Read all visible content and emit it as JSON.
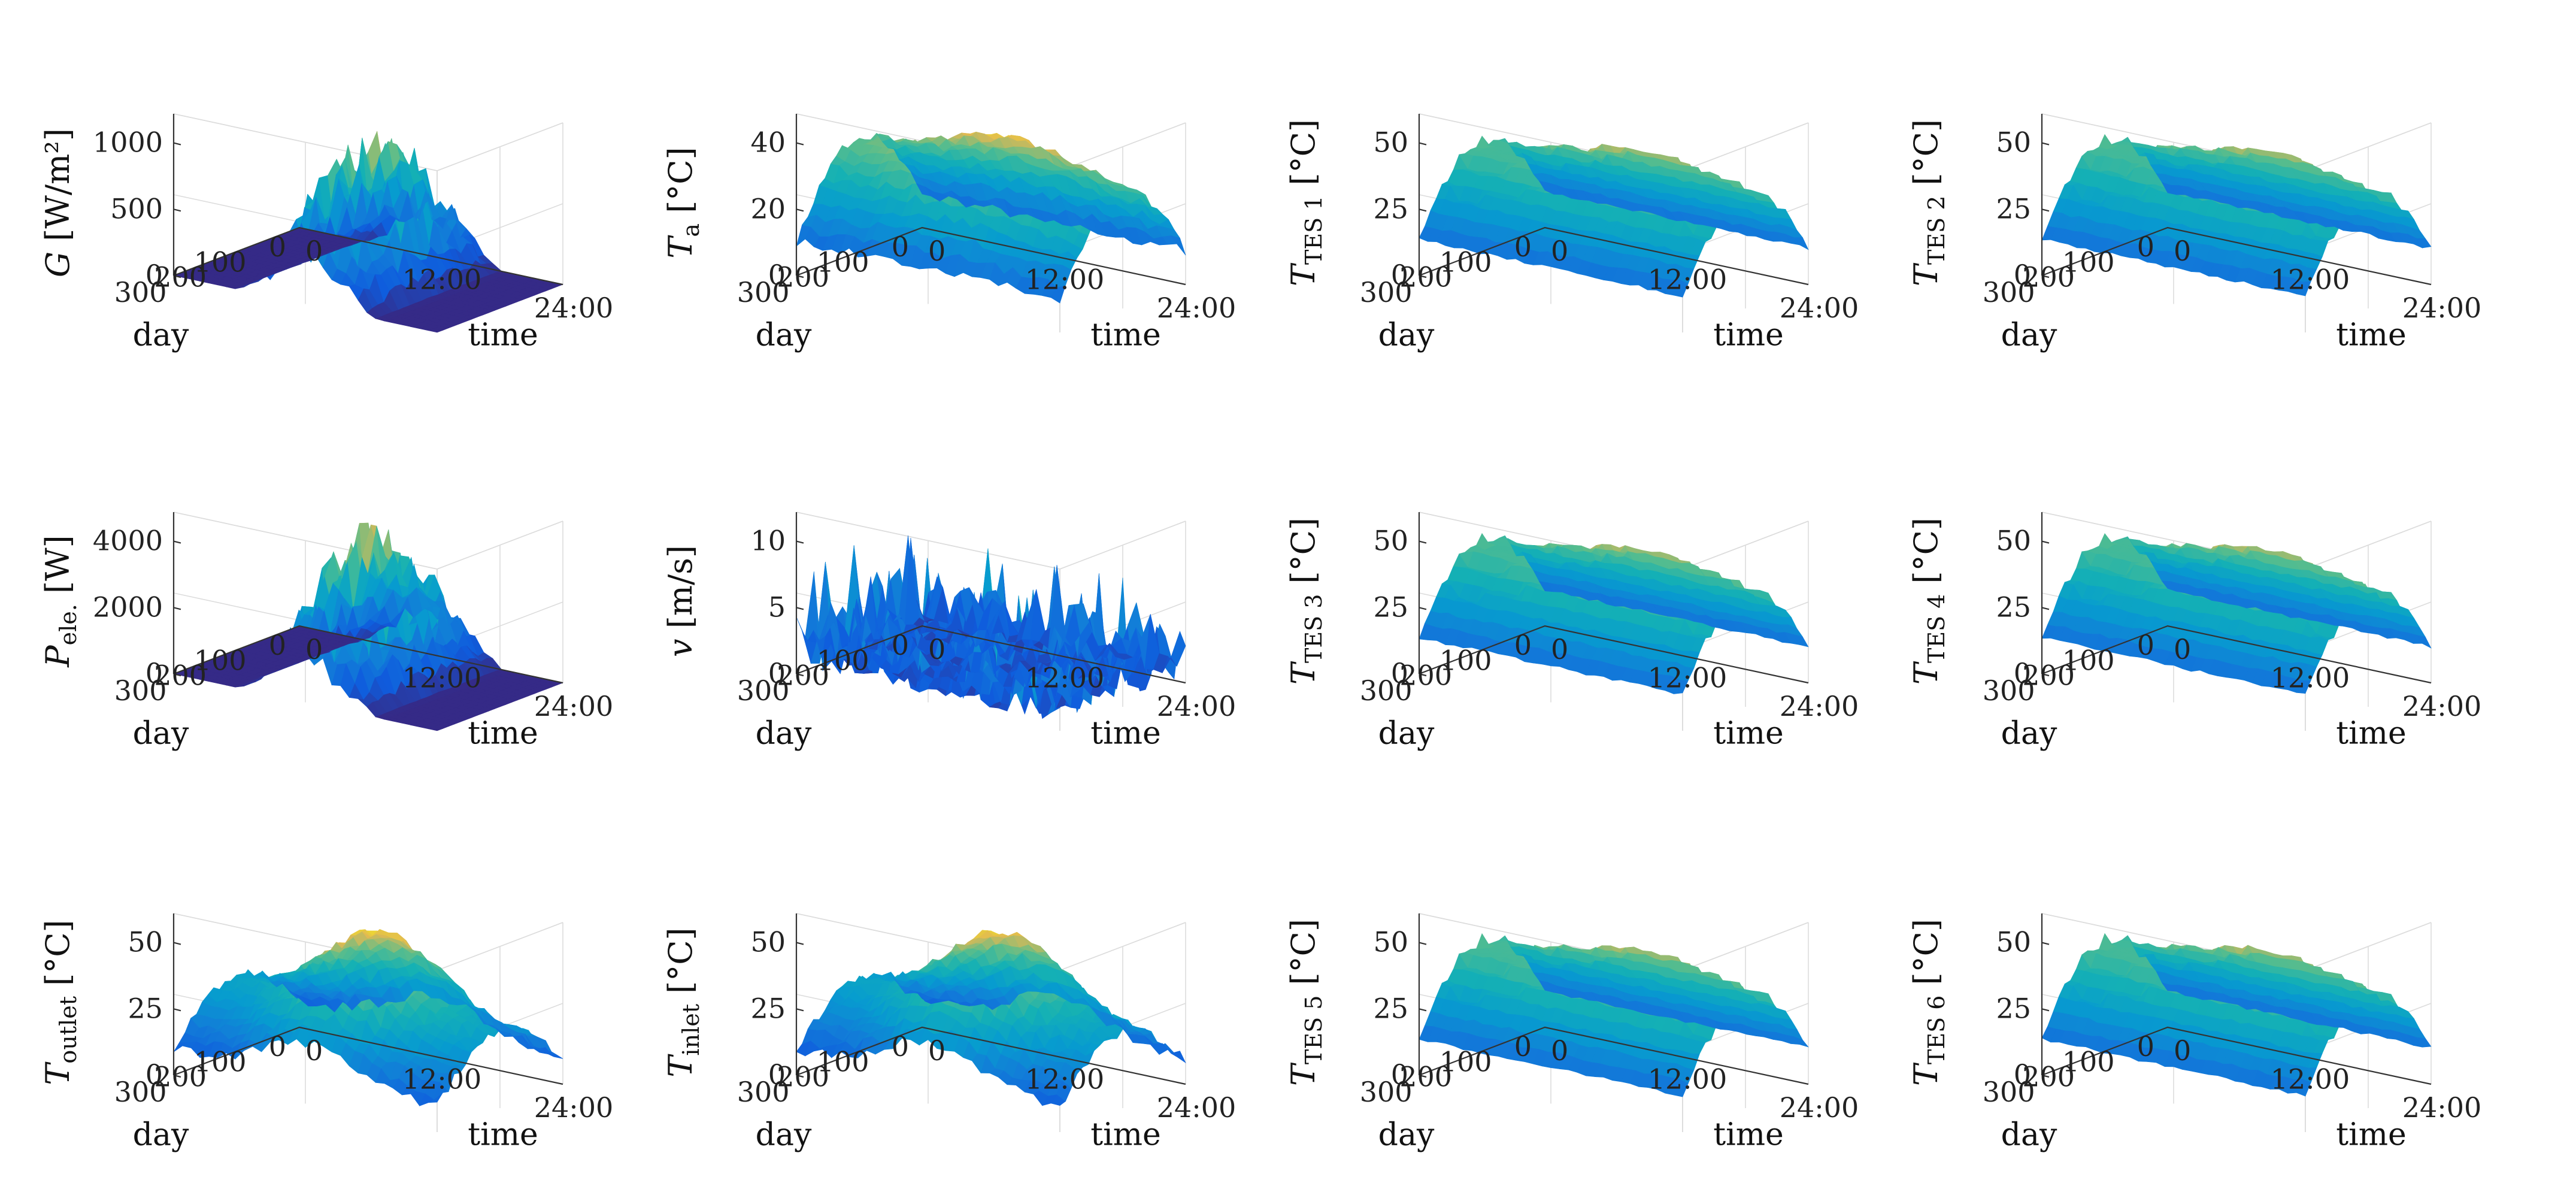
{
  "chart_data": [
    {
      "id": "G",
      "type": "surface",
      "zlabel": {
        "main": "G",
        "sub": "",
        "unit": " [W/m²]"
      },
      "zticks": [
        "0",
        "500",
        "1000"
      ],
      "zmax": 1300,
      "shape": "solar",
      "xlabel": "time",
      "ylabel": "day",
      "xticks": [
        "0",
        "12:00",
        "24:00"
      ],
      "yticks": [
        "0",
        "100",
        "200",
        "300"
      ],
      "colormap": "parula"
    },
    {
      "id": "Ta",
      "type": "surface",
      "zlabel": {
        "main": "T",
        "sub": "a",
        "unit": " [°C]"
      },
      "zticks": [
        "0",
        "20",
        "40"
      ],
      "zmax": 48,
      "zmin": -12,
      "shape": "ambient",
      "xlabel": "time",
      "ylabel": "day",
      "xticks": [
        "0",
        "12:00",
        "24:00"
      ],
      "yticks": [
        "0",
        "100",
        "200",
        "300"
      ],
      "colormap": "parula"
    },
    {
      "id": "TES1",
      "type": "surface",
      "zlabel": {
        "main": "T",
        "sub": "TES 1",
        "unit": " [°C]"
      },
      "zticks": [
        "0",
        "25",
        "50"
      ],
      "zmax": 50,
      "shape": "tank",
      "xlabel": "time",
      "ylabel": "day",
      "xticks": [
        "0",
        "12:00",
        "24:00"
      ],
      "yticks": [
        "0",
        "100",
        "200",
        "300"
      ],
      "colormap": "parula"
    },
    {
      "id": "TES2",
      "type": "surface",
      "zlabel": {
        "main": "T",
        "sub": "TES 2",
        "unit": " [°C]"
      },
      "zticks": [
        "0",
        "25",
        "50"
      ],
      "zmax": 50,
      "shape": "tank",
      "xlabel": "time",
      "ylabel": "day",
      "xticks": [
        "0",
        "12:00",
        "24:00"
      ],
      "yticks": [
        "0",
        "100",
        "200",
        "300"
      ],
      "colormap": "parula"
    },
    {
      "id": "Pele",
      "type": "surface",
      "zlabel": {
        "main": "P",
        "sub": "ele.",
        "unit": " [W]"
      },
      "zticks": [
        "0",
        "2000",
        "4000"
      ],
      "zmax": 4400,
      "shape": "solar",
      "xlabel": "time",
      "ylabel": "day",
      "xticks": [
        "0",
        "12:00",
        "24:00"
      ],
      "yticks": [
        "0",
        "100",
        "200",
        "300"
      ],
      "colormap": "parula"
    },
    {
      "id": "v",
      "type": "surface",
      "zlabel": {
        "main": "v",
        "sub": "",
        "unit": " [m/s]"
      },
      "zticks": [
        "0",
        "5",
        "10"
      ],
      "zmax": 14,
      "shape": "wind",
      "xlabel": "time",
      "ylabel": "day",
      "xticks": [
        "0",
        "12:00",
        "24:00"
      ],
      "yticks": [
        "0",
        "100",
        "200",
        "300"
      ],
      "colormap": "parula"
    },
    {
      "id": "TES3",
      "type": "surface",
      "zlabel": {
        "main": "T",
        "sub": "TES 3",
        "unit": " [°C]"
      },
      "zticks": [
        "0",
        "25",
        "50"
      ],
      "zmax": 50,
      "shape": "tank",
      "xlabel": "time",
      "ylabel": "day",
      "xticks": [
        "0",
        "12:00",
        "24:00"
      ],
      "yticks": [
        "0",
        "100",
        "200",
        "300"
      ],
      "colormap": "parula"
    },
    {
      "id": "TES4",
      "type": "surface",
      "zlabel": {
        "main": "T",
        "sub": "TES 4",
        "unit": " [°C]"
      },
      "zticks": [
        "0",
        "25",
        "50"
      ],
      "zmax": 50,
      "shape": "tank",
      "xlabel": "time",
      "ylabel": "day",
      "xticks": [
        "0",
        "12:00",
        "24:00"
      ],
      "yticks": [
        "0",
        "100",
        "200",
        "300"
      ],
      "colormap": "parula"
    },
    {
      "id": "Toutlet",
      "type": "surface",
      "zlabel": {
        "main": "T",
        "sub": "outlet",
        "unit": " [°C]"
      },
      "zticks": [
        "0",
        "25",
        "50"
      ],
      "zmax": 50,
      "shape": "loop",
      "xlabel": "time",
      "ylabel": "day",
      "xticks": [
        "0",
        "12:00",
        "24:00"
      ],
      "yticks": [
        "0",
        "100",
        "200",
        "300"
      ],
      "colormap": "parula"
    },
    {
      "id": "Tinlet",
      "type": "surface",
      "zlabel": {
        "main": "T",
        "sub": "inlet",
        "unit": " [°C]"
      },
      "zticks": [
        "0",
        "25",
        "50"
      ],
      "zmax": 50,
      "shape": "loop",
      "xlabel": "time",
      "ylabel": "day",
      "xticks": [
        "0",
        "12:00",
        "24:00"
      ],
      "yticks": [
        "0",
        "100",
        "200",
        "300"
      ],
      "colormap": "parula"
    },
    {
      "id": "TES5",
      "type": "surface",
      "zlabel": {
        "main": "T",
        "sub": "TES 5",
        "unit": " [°C]"
      },
      "zticks": [
        "0",
        "25",
        "50"
      ],
      "zmax": 50,
      "shape": "tank",
      "xlabel": "time",
      "ylabel": "day",
      "xticks": [
        "0",
        "12:00",
        "24:00"
      ],
      "yticks": [
        "0",
        "100",
        "200",
        "300"
      ],
      "colormap": "parula"
    },
    {
      "id": "TES6",
      "type": "surface",
      "zlabel": {
        "main": "T",
        "sub": "TES 6",
        "unit": " [°C]"
      },
      "zticks": [
        "0",
        "25",
        "50"
      ],
      "zmax": 50,
      "shape": "tank",
      "xlabel": "time",
      "ylabel": "day",
      "xticks": [
        "0",
        "12:00",
        "24:00"
      ],
      "yticks": [
        "0",
        "100",
        "200",
        "300"
      ],
      "colormap": "parula"
    }
  ]
}
